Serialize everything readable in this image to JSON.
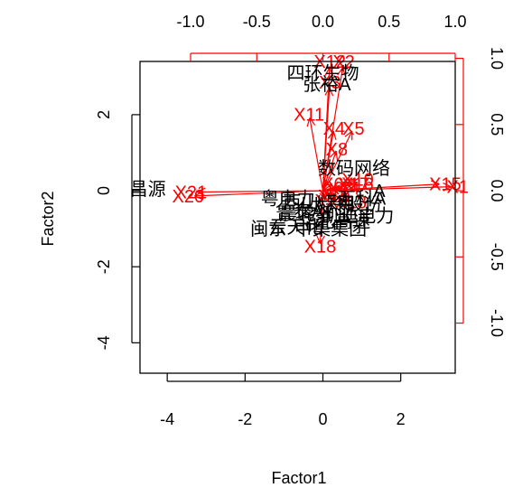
{
  "chart_data": {
    "type": "scatter",
    "subtype": "biplot",
    "title": "",
    "xlabel": "Factor1",
    "ylabel": "Factor2",
    "xlim": [
      -4.7,
      3.4
    ],
    "ylim": [
      -4.8,
      3.4
    ],
    "x_ticks": [
      -4,
      -2,
      0,
      2
    ],
    "y_ticks": [
      -4,
      -2,
      0,
      2
    ],
    "top_ticks": [
      "-1.0",
      "-0.5",
      "0.0",
      "0.5",
      "1.0"
    ],
    "right_ticks": [
      "-1.0",
      "-0.5",
      "0.0",
      "0.5",
      "1.0"
    ],
    "loading_color": "#ff0000",
    "score_color": "#000000",
    "score_labels": [
      {
        "text": "四环生物",
        "x": 0.0,
        "y": 3.1
      },
      {
        "text": "张裕A",
        "x": 0.1,
        "y": 2.8
      },
      {
        "text": "数码网络",
        "x": 0.8,
        "y": 0.6
      },
      {
        "text": "昌源",
        "x": -4.5,
        "y": 0.05
      },
      {
        "text": "闽东",
        "x": -1.4,
        "y": -1.0
      },
      {
        "text": "A",
        "x": 1.45,
        "y": 0.0
      },
      {
        "text": "晨鸣纸业",
        "x": -0.2,
        "y": -0.6
      },
      {
        "text": "云天化",
        "x": -0.7,
        "y": -0.95
      },
      {
        "text": "华北高速",
        "x": 0.3,
        "y": -0.8
      },
      {
        "text": "凯迪电力",
        "x": 0.9,
        "y": -0.65
      },
      {
        "text": "西山煤电",
        "x": -0.1,
        "y": -0.3
      },
      {
        "text": "大冷股份",
        "x": 0.6,
        "y": -0.35
      },
      {
        "text": "鲁泰A",
        "x": -0.6,
        "y": -0.55
      },
      {
        "text": "万科A",
        "x": 1.0,
        "y": -0.2
      },
      {
        "text": "粤电力",
        "x": -0.9,
        "y": -0.2
      },
      {
        "text": "中集集团",
        "x": 0.2,
        "y": -1.0
      }
    ],
    "loadings": [
      {
        "name": "X1",
        "x": 0.97,
        "y": 0.03
      },
      {
        "name": "X2",
        "x": 0.15,
        "y": 0.93
      },
      {
        "name": "X3",
        "x": 0.05,
        "y": 0.78
      },
      {
        "name": "X4",
        "x": 0.08,
        "y": 0.45
      },
      {
        "name": "X5",
        "x": 0.22,
        "y": 0.45
      },
      {
        "name": "X6",
        "x": 0.07,
        "y": 0.05
      },
      {
        "name": "X7",
        "x": 0.02,
        "y": -0.07
      },
      {
        "name": "X8",
        "x": 0.1,
        "y": 0.3
      },
      {
        "name": "X9",
        "x": 0.1,
        "y": -0.07
      },
      {
        "name": "X10",
        "x": 0.25,
        "y": 0.08
      },
      {
        "name": "X11",
        "x": -0.1,
        "y": 0.55
      },
      {
        "name": "X12",
        "x": 0.05,
        "y": 0.93
      },
      {
        "name": "X13",
        "x": 0.2,
        "y": -0.08
      },
      {
        "name": "X14",
        "x": 0.15,
        "y": 0.02
      },
      {
        "name": "X15",
        "x": 0.88,
        "y": 0.05
      },
      {
        "name": "X16",
        "x": 0.25,
        "y": 0.05
      },
      {
        "name": "X17",
        "x": 0.22,
        "y": 0.05
      },
      {
        "name": "X18",
        "x": -0.02,
        "y": -0.4
      },
      {
        "name": "X19",
        "x": 0.08,
        "y": -0.04
      },
      {
        "name": "X20",
        "x": -0.97,
        "y": -0.04
      },
      {
        "name": "X21",
        "x": -0.95,
        "y": -0.01
      }
    ]
  }
}
